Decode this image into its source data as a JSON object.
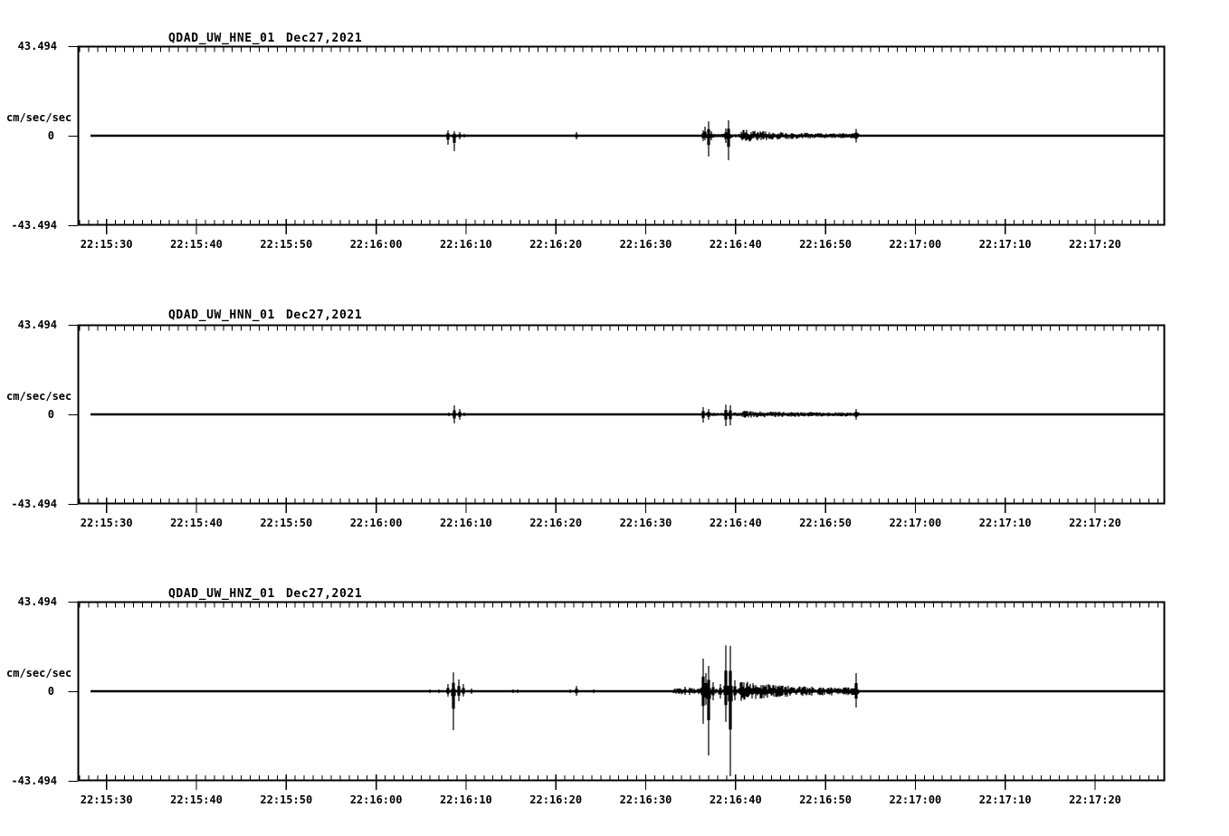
{
  "page": {
    "background": "#ffffff",
    "ink": "#000000",
    "description": "Three-channel seismogram (acceleration) display, station QDAD network UW, Dec 27 2021"
  },
  "x_axis": {
    "tick_labels": [
      "22:15:30",
      "22:15:40",
      "22:15:50",
      "22:16:00",
      "22:16:10",
      "22:16:20",
      "22:16:30",
      "22:16:40",
      "22:16:50",
      "22:17:00",
      "22:17:10",
      "22:17:20"
    ],
    "tick_times_sec": [
      0,
      10,
      20,
      30,
      40,
      50,
      60,
      70,
      80,
      90,
      100,
      110
    ],
    "minor_step_sec": 1,
    "major_step_sec": 10
  },
  "chart_data": [
    {
      "type": "line",
      "title": "QDAD_UW_HNE_01",
      "date": "Dec27,2021",
      "ylabel": "cm/sec/sec",
      "y_top": "43.494",
      "y_zero": "0",
      "y_bottom": "-43.494",
      "ylim": [
        -43.494,
        43.494
      ],
      "baseline_value": 0,
      "spikes": [
        {
          "t": 38.0,
          "up": 2.6,
          "dn": 4.4
        },
        {
          "t": 38.7,
          "up": 2.2,
          "dn": 7.5
        },
        {
          "t": 39.3,
          "up": 1.8,
          "dn": 1.8
        },
        {
          "t": 39.8,
          "up": 0.9,
          "dn": 0.9
        },
        {
          "t": 45.6,
          "up": 0.4,
          "dn": 0.4
        },
        {
          "t": 52.3,
          "up": 1.8,
          "dn": 1.8
        },
        {
          "t": 66.35,
          "up": 2.6,
          "dn": 2.6
        },
        {
          "t": 66.6,
          "up": 4.4,
          "dn": 2.2
        },
        {
          "t": 67.0,
          "up": 7.0,
          "dn": 10.1
        },
        {
          "t": 67.35,
          "up": 2.2,
          "dn": 2.2
        },
        {
          "t": 68.9,
          "up": 3.5,
          "dn": 3.5
        },
        {
          "t": 69.25,
          "up": 7.5,
          "dn": 11.9
        },
        {
          "t": 83.4,
          "up": 3.3,
          "dn": 3.3
        }
      ],
      "bursts": [
        {
          "t0": 66.2,
          "t1": 70.6,
          "a0": 1.0,
          "a1": 1.0,
          "tau": 99
        },
        {
          "t0": 70.6,
          "t1": 83.8,
          "a0": 3.3,
          "a1": 1.1,
          "tau": 4
        }
      ]
    },
    {
      "type": "line",
      "title": "QDAD_UW_HNN_01",
      "date": "Dec27,2021",
      "ylabel": "cm/sec/sec",
      "y_top": "43.494",
      "y_zero": "0",
      "y_bottom": "-43.494",
      "ylim": [
        -43.494,
        43.494
      ],
      "baseline_value": 0,
      "spikes": [
        {
          "t": 38.1,
          "up": 0.9,
          "dn": 0.9
        },
        {
          "t": 38.7,
          "up": 4.4,
          "dn": 4.4
        },
        {
          "t": 39.3,
          "up": 2.6,
          "dn": 2.6
        },
        {
          "t": 39.8,
          "up": 0.9,
          "dn": 0.9
        },
        {
          "t": 41.6,
          "up": 0.4,
          "dn": 0.4
        },
        {
          "t": 52.3,
          "up": 0.5,
          "dn": 0.5
        },
        {
          "t": 66.35,
          "up": 3.5,
          "dn": 4.0
        },
        {
          "t": 67.0,
          "up": 2.6,
          "dn": 2.6
        },
        {
          "t": 68.9,
          "up": 4.8,
          "dn": 5.7
        },
        {
          "t": 69.4,
          "up": 4.4,
          "dn": 5.3
        },
        {
          "t": 83.4,
          "up": 2.6,
          "dn": 2.6
        }
      ],
      "bursts": [
        {
          "t0": 66.2,
          "t1": 70.6,
          "a0": 0.9,
          "a1": 0.9,
          "tau": 99
        },
        {
          "t0": 70.6,
          "t1": 83.8,
          "a0": 1.9,
          "a1": 1.0,
          "tau": 4
        }
      ]
    },
    {
      "type": "line",
      "title": "QDAD_UW_HNZ_01",
      "date": "Dec27,2021",
      "ylabel": "cm/sec/sec",
      "y_top": "43.494",
      "y_zero": "0",
      "y_bottom": "-43.494",
      "ylim": [
        -43.494,
        43.494
      ],
      "baseline_value": 0,
      "spikes": [
        {
          "t": 36.0,
          "up": 0.9,
          "dn": 0.9
        },
        {
          "t": 37.0,
          "up": 0.9,
          "dn": 0.9
        },
        {
          "t": 38.0,
          "up": 3.5,
          "dn": 2.6
        },
        {
          "t": 38.6,
          "up": 9.2,
          "dn": 18.9
        },
        {
          "t": 39.2,
          "up": 5.7,
          "dn": 4.8
        },
        {
          "t": 39.7,
          "up": 3.5,
          "dn": 2.6
        },
        {
          "t": 40.6,
          "up": 1.3,
          "dn": 1.3
        },
        {
          "t": 45.2,
          "up": 0.9,
          "dn": 0.9
        },
        {
          "t": 45.8,
          "up": 0.9,
          "dn": 0.9
        },
        {
          "t": 51.6,
          "up": 0.9,
          "dn": 0.9
        },
        {
          "t": 52.3,
          "up": 2.6,
          "dn": 2.2
        },
        {
          "t": 54.2,
          "up": 0.9,
          "dn": 0.9
        },
        {
          "t": 63.2,
          "up": 0.9,
          "dn": 0.9
        },
        {
          "t": 63.7,
          "up": 1.3,
          "dn": 1.3
        },
        {
          "t": 64.4,
          "up": 2.2,
          "dn": 1.8
        },
        {
          "t": 64.9,
          "up": 1.8,
          "dn": 1.8
        },
        {
          "t": 66.4,
          "up": 15.8,
          "dn": 15.8
        },
        {
          "t": 66.7,
          "up": 8.8,
          "dn": 6.6
        },
        {
          "t": 67.0,
          "up": 12.3,
          "dn": 31.2
        },
        {
          "t": 67.5,
          "up": 4.4,
          "dn": 4.4
        },
        {
          "t": 68.3,
          "up": 3.5,
          "dn": 3.5
        },
        {
          "t": 68.9,
          "up": 22.3,
          "dn": 14.9
        },
        {
          "t": 69.4,
          "up": 22.0,
          "dn": 41.3
        },
        {
          "t": 69.9,
          "up": 5.3,
          "dn": 4.4
        },
        {
          "t": 83.4,
          "up": 8.8,
          "dn": 7.9
        }
      ],
      "bursts": [
        {
          "t0": 63.0,
          "t1": 70.5,
          "a0": 1.5,
          "a1": 1.5,
          "tau": 99
        },
        {
          "t0": 70.5,
          "t1": 83.8,
          "a0": 5.3,
          "a1": 1.8,
          "tau": 4
        }
      ]
    }
  ]
}
